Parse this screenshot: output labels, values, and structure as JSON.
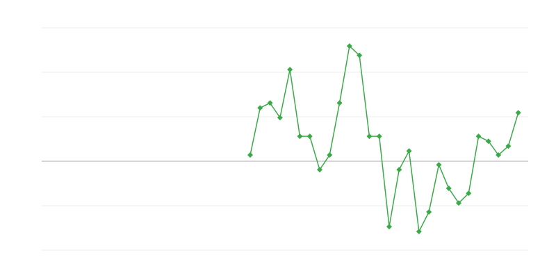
{
  "chart_data": {
    "type": "line",
    "series": [
      {
        "color": "#3aaa48",
        "x": [
          21,
          22,
          23,
          24,
          25,
          26,
          27,
          28,
          29,
          30,
          31,
          32,
          33,
          34,
          35,
          36,
          37,
          38,
          39,
          40,
          41,
          42,
          43,
          44,
          45,
          46,
          47,
          48
        ],
        "values": [
          0.14,
          1.2,
          1.31,
          0.98,
          2.06,
          0.56,
          0.56,
          -0.19,
          0.14,
          1.31,
          2.59,
          2.38,
          0.56,
          0.56,
          -1.47,
          -0.19,
          0.23,
          -1.58,
          -1.14,
          -0.08,
          -0.61,
          -0.94,
          -0.72,
          0.56,
          0.45,
          0.14,
          0.34,
          1.09
        ]
      }
    ],
    "xlim": [
      0,
      49
    ],
    "ylim": [
      -2,
      3
    ],
    "yticks": [
      -2,
      -1,
      0,
      1,
      2,
      3
    ],
    "grid": true
  }
}
